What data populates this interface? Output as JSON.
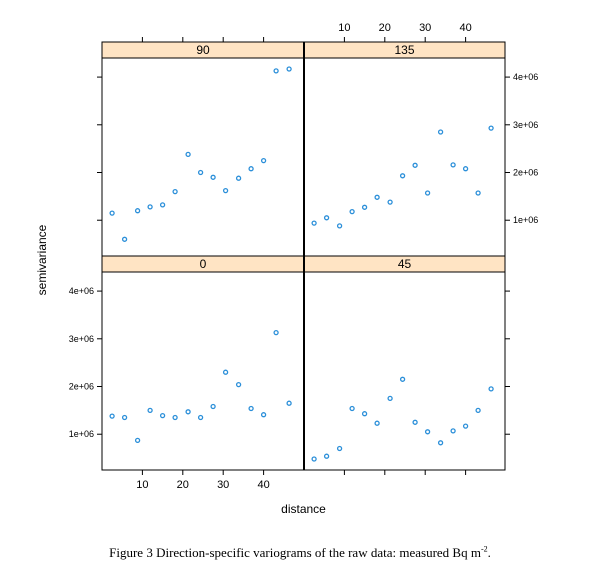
{
  "chart_data": {
    "type": "scatter",
    "layout": "lattice 2x2 panels sharing x and y axes",
    "xlabel": "distance",
    "ylabel": "semivariance",
    "x_ticks": [
      10,
      20,
      30,
      40
    ],
    "y_ticks": [
      1000000,
      2000000,
      3000000,
      4000000
    ],
    "y_tick_labels": [
      "1e+06",
      "2e+06",
      "3e+06",
      "4e+06"
    ],
    "xlim": [
      0,
      50
    ],
    "ylim": [
      250000,
      4400000
    ],
    "point_color": "#2b8fd9",
    "strip_color": "#ffe4c4",
    "panels": [
      {
        "title": "90",
        "x": [
          2.5,
          5.6,
          8.8,
          11.9,
          15.0,
          18.1,
          21.3,
          24.4,
          27.5,
          30.6,
          33.8,
          36.9,
          40.0,
          43.1,
          46.3
        ],
        "y": [
          1150000,
          600000,
          1200000,
          1280000,
          1320000,
          1600000,
          2380000,
          2000000,
          1900000,
          1620000,
          1880000,
          2080000,
          2250000,
          4130000,
          4170000
        ]
      },
      {
        "title": "135",
        "x": [
          2.5,
          5.6,
          8.8,
          11.9,
          15.0,
          18.1,
          21.3,
          24.4,
          27.5,
          30.6,
          33.8,
          36.9,
          40.0,
          43.1,
          46.3
        ],
        "y": [
          940000,
          1050000,
          880000,
          1180000,
          1270000,
          1480000,
          1380000,
          1930000,
          2150000,
          1570000,
          2850000,
          2160000,
          2080000,
          1570000,
          2930000
        ]
      },
      {
        "title": "0",
        "x": [
          2.5,
          5.6,
          8.8,
          11.9,
          15.0,
          18.1,
          21.3,
          24.4,
          27.5,
          30.6,
          33.8,
          36.9,
          40.0,
          43.1,
          46.3
        ],
        "y": [
          1380000,
          1350000,
          870000,
          1500000,
          1390000,
          1350000,
          1470000,
          1350000,
          1580000,
          2300000,
          2040000,
          1540000,
          1410000,
          3130000,
          1650000
        ]
      },
      {
        "title": "45",
        "x": [
          2.5,
          5.6,
          8.8,
          11.9,
          15.0,
          18.1,
          21.3,
          24.4,
          27.5,
          30.6,
          33.8,
          36.9,
          40.0,
          43.1,
          46.3
        ],
        "y": [
          480000,
          540000,
          700000,
          1540000,
          1430000,
          1230000,
          1750000,
          2150000,
          1250000,
          1050000,
          820000,
          1070000,
          1170000,
          1500000,
          1950000
        ]
      }
    ]
  },
  "caption": {
    "text": "Figure 3 Direction-specific variograms of the raw data: measured Bq m",
    "sup": "-2",
    "end": "."
  }
}
